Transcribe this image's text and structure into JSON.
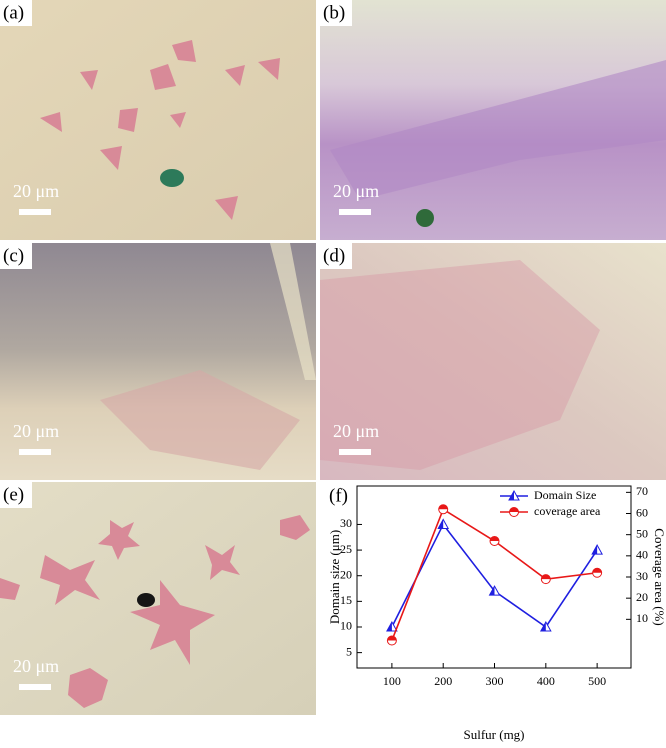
{
  "panels": [
    {
      "label": "(a)",
      "scale_bar": "20 μm"
    },
    {
      "label": "(b)",
      "scale_bar": "20 μm"
    },
    {
      "label": "(c)",
      "scale_bar": "20 μm"
    },
    {
      "label": "(d)",
      "scale_bar": "20 μm"
    },
    {
      "label": "(e)",
      "scale_bar": "20 μm"
    }
  ],
  "chart_data": {
    "type": "line",
    "panel_label": "(f)",
    "x_label": "Sulfur (mg)",
    "y_label": "Domain size (μm)",
    "y2_label": "Coverage area (%)",
    "x": [
      100,
      200,
      300,
      400,
      500
    ],
    "xlim": [
      32,
      566
    ],
    "xticks": [
      100,
      200,
      300,
      400,
      500
    ],
    "ylim": [
      2,
      37.5
    ],
    "yticks": [
      5,
      10,
      15,
      20,
      25,
      30
    ],
    "y2lim": [
      -13,
      73
    ],
    "y2ticks": [
      10,
      20,
      30,
      40,
      50,
      60,
      70
    ],
    "legend": "upper right",
    "series": [
      {
        "name": "Domain Size",
        "color": "#1f1fe0",
        "marker": "triangle",
        "values": [
          10,
          30,
          17,
          10,
          25
        ]
      },
      {
        "name": "coverage area",
        "color": "#e81818",
        "marker": "circle",
        "axis": "y2",
        "values": [
          0,
          62,
          47,
          29,
          32
        ]
      }
    ]
  }
}
